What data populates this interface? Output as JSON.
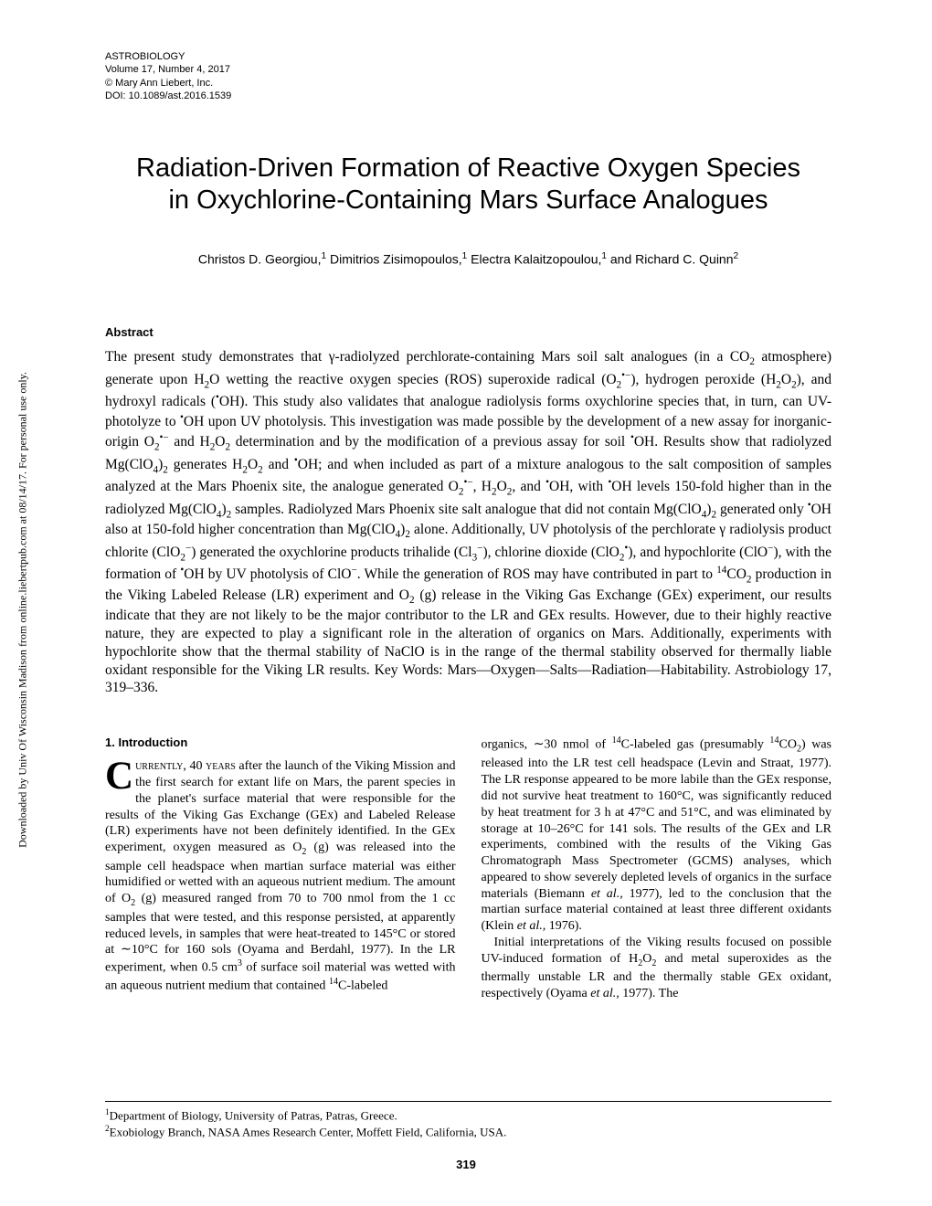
{
  "journal_header": {
    "journal": "ASTROBIOLOGY",
    "volume_line": "Volume 17, Number 4, 2017",
    "copyright": "© Mary Ann Liebert, Inc.",
    "doi": "DOI: 10.1089/ast.2016.1539"
  },
  "watermark": "Downloaded by Univ Of Wisconsin Madison from online.liebertpub.com at 08/14/17. For personal use only.",
  "title_line1": "Radiation-Driven Formation of Reactive Oxygen Species",
  "title_line2": "in Oxychlorine-Containing Mars Surface Analogues",
  "authors_html": "Christos D. Georgiou,<sup>1</sup> Dimitrios Zisimopoulos,<sup>1</sup> Electra Kalaitzopoulou,<sup>1</sup> and Richard C. Quinn<sup>2</sup>",
  "abstract_heading": "Abstract",
  "abstract_html": "The present study demonstrates that γ-radiolyzed perchlorate-containing Mars soil salt analogues (in a CO<sub>2</sub> atmosphere) generate upon H<sub>2</sub>O wetting the reactive oxygen species (ROS) superoxide radical (O<sub>2</sub><sup>•−</sup>), hydrogen peroxide (H<sub>2</sub>O<sub>2</sub>), and hydroxyl radicals (<sup>•</sup>OH). This study also validates that analogue radiolysis forms oxychlorine species that, in turn, can UV-photolyze to <sup>•</sup>OH upon UV photolysis. This investigation was made possible by the development of a new assay for inorganic-origin O<sub>2</sub><sup>•−</sup> and H<sub>2</sub>O<sub>2</sub> determination and by the modification of a previous assay for soil <sup>•</sup>OH. Results show that radiolyzed Mg(ClO<sub>4</sub>)<sub>2</sub> generates H<sub>2</sub>O<sub>2</sub> and <sup>•</sup>OH; and when included as part of a mixture analogous to the salt composition of samples analyzed at the Mars Phoenix site, the analogue generated O<sub>2</sub><sup>•−</sup>, H<sub>2</sub>O<sub>2</sub>, and <sup>•</sup>OH, with <sup>•</sup>OH levels 150-fold higher than in the radiolyzed Mg(ClO<sub>4</sub>)<sub>2</sub> samples. Radiolyzed Mars Phoenix site salt analogue that did not contain Mg(ClO<sub>4</sub>)<sub>2</sub> generated only <sup>•</sup>OH also at 150-fold higher concentration than Mg(ClO<sub>4</sub>)<sub>2</sub> alone. Additionally, UV photolysis of the perchlorate γ radiolysis product chlorite (ClO<sub>2</sub><sup>−</sup>) generated the oxychlorine products trihalide (Cl<sub>3</sub><sup>−</sup>), chlorine dioxide (ClO<sub>2</sub><sup>•</sup>), and hypochlorite (ClO<sup>−</sup>), with the formation of <sup>•</sup>OH by UV photolysis of ClO<sup>−</sup>. While the generation of ROS may have contributed in part to <sup>14</sup>CO<sub>2</sub> production in the Viking Labeled Release (LR) experiment and O<sub>2</sub> (g) release in the Viking Gas Exchange (GEx) experiment, our results indicate that they are not likely to be the major contributor to the LR and GEx results. However, due to their highly reactive nature, they are expected to play a significant role in the alteration of organics on Mars. Additionally, experiments with hypochlorite show that the thermal stability of NaClO is in the range of the thermal stability observed for thermally liable oxidant responsible for the Viking LR results. Key Words: Mars—Oxygen—Salts—Radiation—Habitability. Astrobiology 17, 319–336.",
  "intro_heading": "1. Introduction",
  "col1_html": "<span class='dropcap'>C</span><span class='smallcaps'>urrently, 40 years</span> after the launch of the Viking Mission and the first search for extant life on Mars, the parent species in the planet's surface material that were responsible for the results of the Viking Gas Exchange (GEx) and Labeled Release (LR) experiments have not been definitely identified. In the GEx experiment, oxygen measured as O<sub>2</sub> (g) was released into the sample cell headspace when martian surface material was either humidified or wetted with an aqueous nutrient medium. The amount of O<sub>2</sub> (g) measured ranged from 70 to 700 nmol from the 1 cc samples that were tested, and this response persisted, at apparently reduced levels, in samples that were heat-treated to 145°C or stored at ∼10°C for 160 sols (Oyama and Berdahl, 1977). In the LR experiment, when 0.5 cm<sup>3</sup> of surface soil material was wetted with an aqueous nutrient medium that contained <sup>14</sup>C-labeled",
  "col2_p1_html": "organics, ∼30 nmol of <sup>14</sup>C-labeled gas (presumably <sup>14</sup>CO<sub>2</sub>) was released into the LR test cell headspace (Levin and Straat, 1977). The LR response appeared to be more labile than the GEx response, did not survive heat treatment to 160°C, was significantly reduced by heat treatment for 3 h at 47°C and 51°C, and was eliminated by storage at 10–26°C for 141 sols. The results of the GEx and LR experiments, combined with the results of the Viking Gas Chromatograph Mass Spectrometer (GCMS) analyses, which appeared to show severely depleted levels of organics in the surface materials (Biemann <i>et al.,</i> 1977), led to the conclusion that the martian surface material contained at least three different oxidants (Klein <i>et al.,</i> 1976).",
  "col2_p2_html": "Initial interpretations of the Viking results focused on possible UV-induced formation of H<sub>2</sub>O<sub>2</sub> and metal superoxides as the thermally unstable LR and the thermally stable GEx oxidant, respectively (Oyama <i>et al.,</i> 1977). The",
  "footnote1_html": "<sup>1</sup>Department of Biology, University of Patras, Patras, Greece.",
  "footnote2_html": "<sup>2</sup>Exobiology Branch, NASA Ames Research Center, Moffett Field, California, USA.",
  "page_num": "319"
}
